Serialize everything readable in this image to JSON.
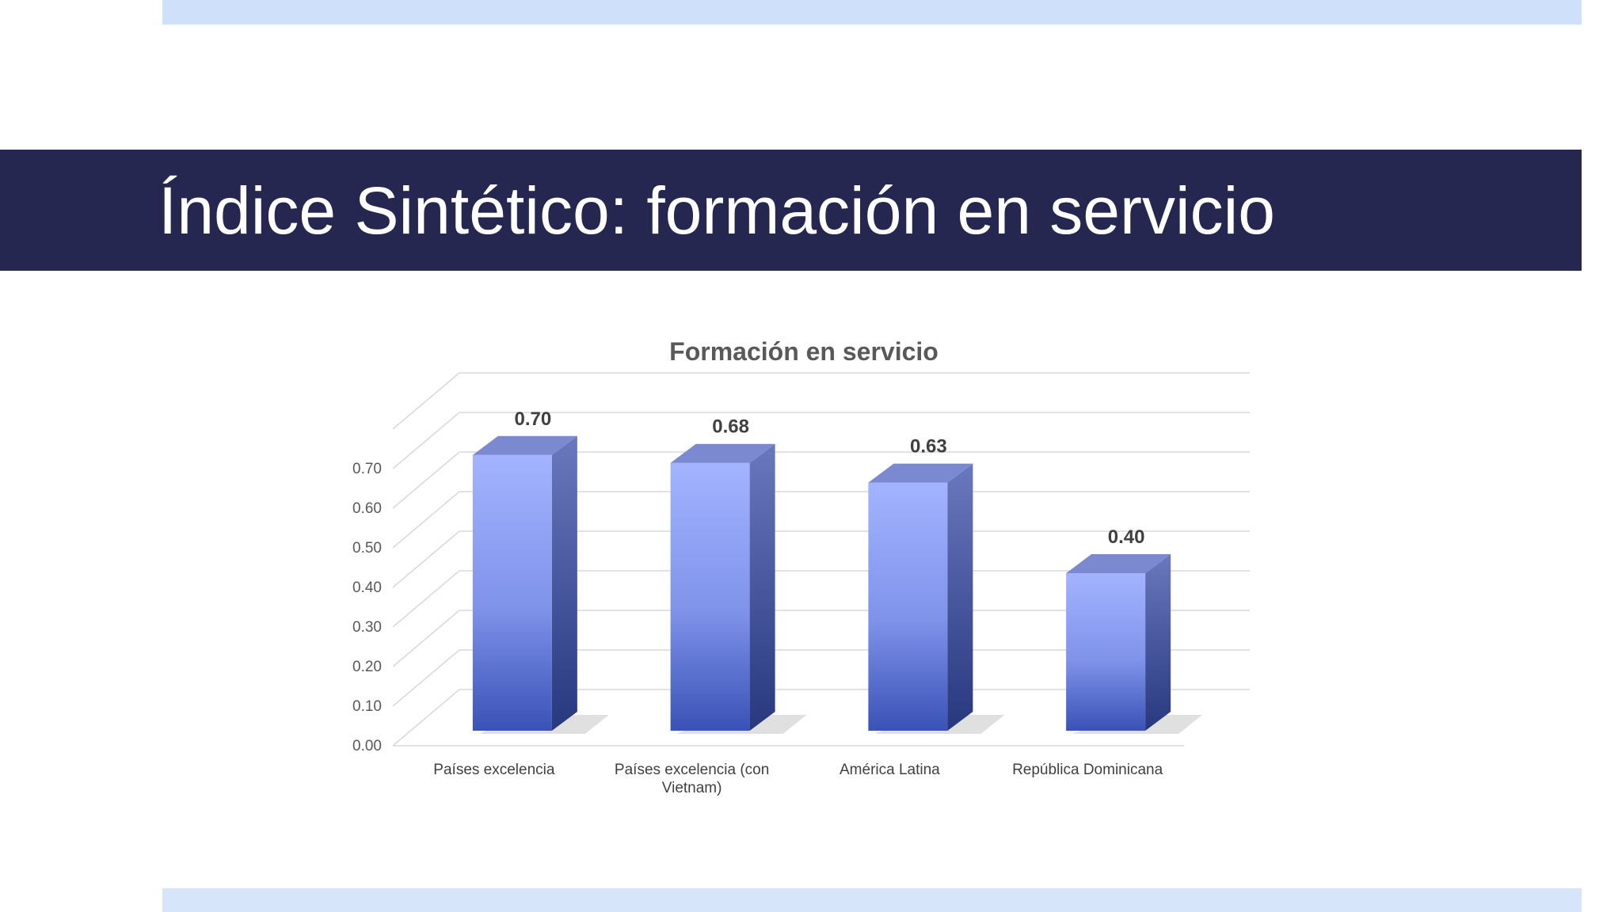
{
  "slide": {
    "title": "Índice Sintético: formación en servicio"
  },
  "colors": {
    "header_band": "#252750",
    "accent_band": "#cfe0fb",
    "bar_front_top": "#9fb0ff",
    "bar_front_bottom": "#3d56b8",
    "bar_side": "#5463a6",
    "bar_top": "#7a89cf"
  },
  "chart_data": {
    "type": "bar",
    "title": "Formación en servicio",
    "categories": [
      "Países excelencia",
      "Países excelencia (con Vietnam)",
      "América Latina",
      "República Dominicana"
    ],
    "category_lines": [
      [
        "Países excelencia"
      ],
      [
        "Países excelencia (con",
        "Vietnam)"
      ],
      [
        "América Latina"
      ],
      [
        "República Dominicana"
      ]
    ],
    "values": [
      0.7,
      0.68,
      0.63,
      0.4
    ],
    "data_labels": [
      "0.70",
      "0.68",
      "0.63",
      "0.40"
    ],
    "y_ticks": [
      "0.00",
      "0.10",
      "0.20",
      "0.30",
      "0.40",
      "0.50",
      "0.60",
      "0.70"
    ],
    "ylim": [
      0,
      0.8
    ],
    "grid": true,
    "legend": "none",
    "style": "3d-column"
  }
}
